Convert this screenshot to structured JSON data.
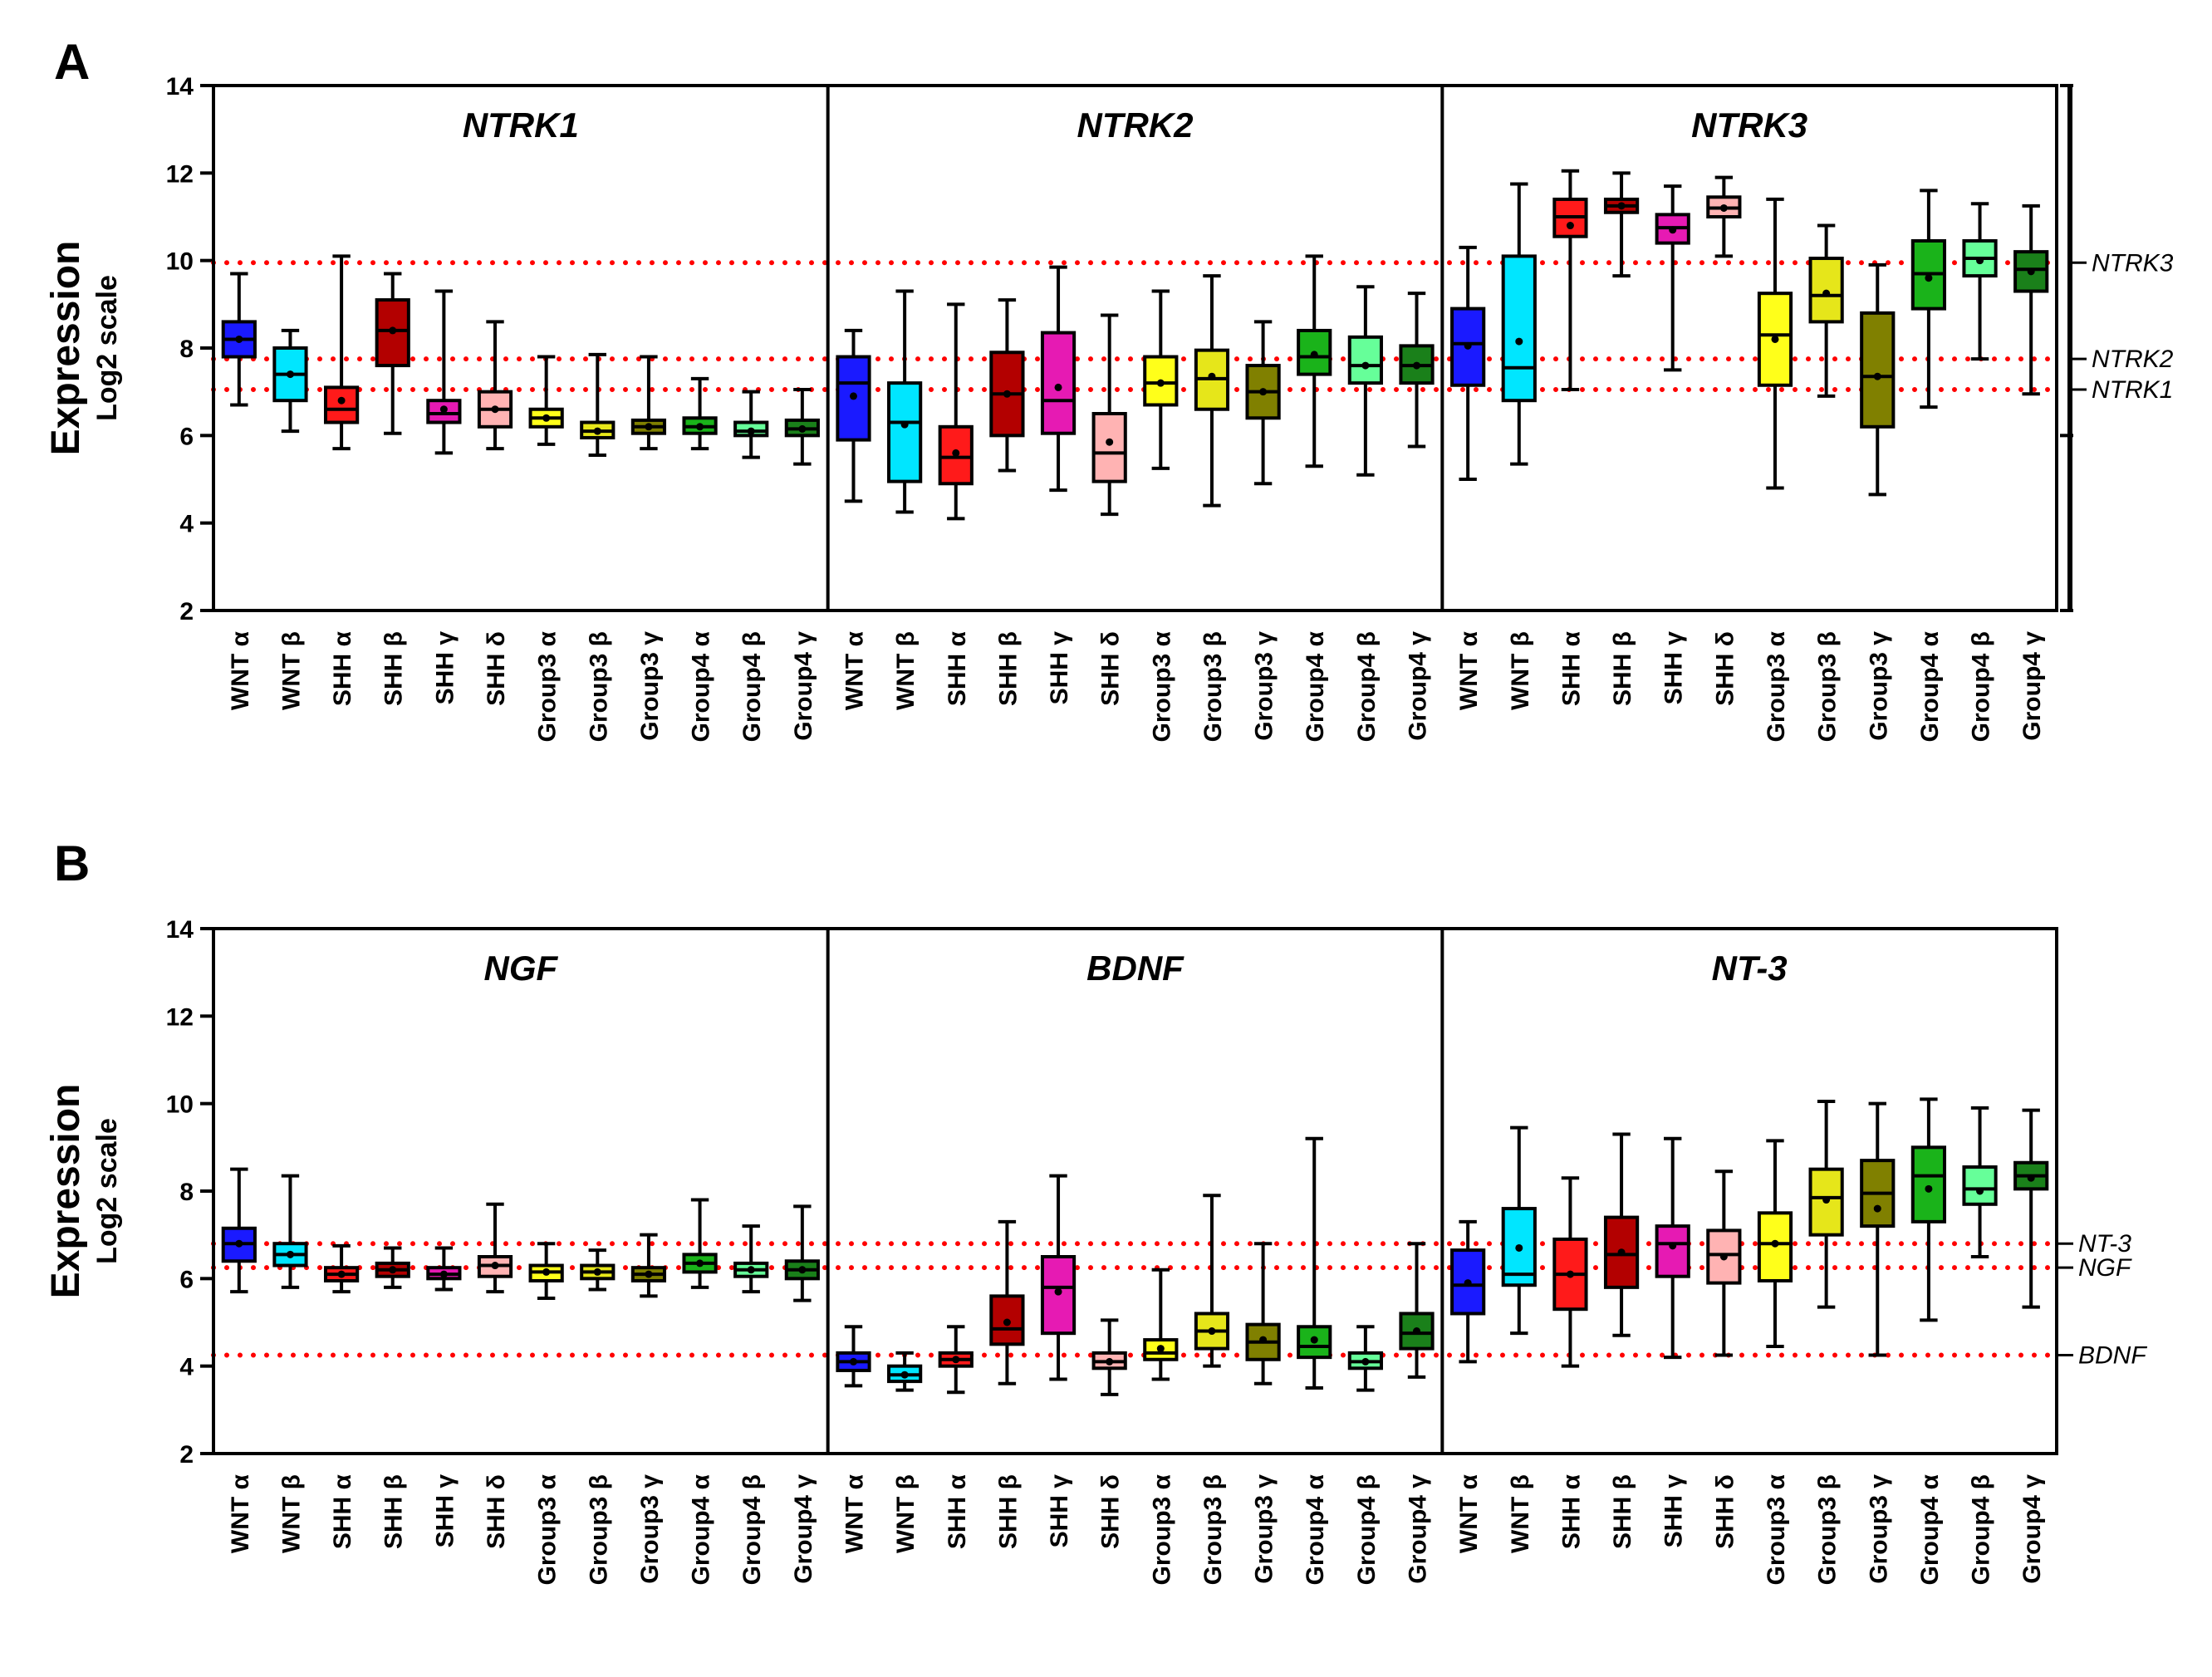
{
  "chart_data": [
    {
      "panel": "A",
      "type": "box",
      "ylabel": "Expression",
      "ylabel_sub": "Log2 scale",
      "ylim": [
        2,
        14
      ],
      "yticks": [
        2,
        4,
        6,
        8,
        10,
        12,
        14
      ],
      "categories": [
        "WNT α",
        "WNT β",
        "SHH α",
        "SHH β",
        "SHH γ",
        "SHH δ",
        "Group3 α",
        "Group3 β",
        "Group3 γ",
        "Group4 α",
        "Group4 β",
        "Group4 γ"
      ],
      "colors": [
        "#1a1aff",
        "#00e6ff",
        "#ff1a1a",
        "#b30000",
        "#e61ab3",
        "#ffb3b3",
        "#ffff1a",
        "#e6e61a",
        "#808000",
        "#1ab31a",
        "#66ff99",
        "#1a801a"
      ],
      "reference_lines": [
        {
          "label": "NTRK3",
          "value": 9.95
        },
        {
          "label": "NTRK2",
          "value": 7.75
        },
        {
          "label": "NTRK1",
          "value": 7.05
        }
      ],
      "sections": [
        {
          "title": "NTRK1",
          "boxes": [
            {
              "min": 6.7,
              "q1": 7.8,
              "median": 8.2,
              "q3": 8.6,
              "max": 9.7,
              "mean": 8.2
            },
            {
              "min": 6.1,
              "q1": 6.8,
              "median": 7.4,
              "q3": 8.0,
              "max": 8.4,
              "mean": 7.4
            },
            {
              "min": 5.7,
              "q1": 6.3,
              "median": 6.6,
              "q3": 7.1,
              "max": 10.1,
              "mean": 6.8
            },
            {
              "min": 6.05,
              "q1": 7.6,
              "median": 8.4,
              "q3": 9.1,
              "max": 9.7,
              "mean": 8.4
            },
            {
              "min": 5.6,
              "q1": 6.3,
              "median": 6.5,
              "q3": 6.8,
              "max": 9.3,
              "mean": 6.6
            },
            {
              "min": 5.7,
              "q1": 6.2,
              "median": 6.6,
              "q3": 7.0,
              "max": 8.6,
              "mean": 6.6
            },
            {
              "min": 5.8,
              "q1": 6.2,
              "median": 6.4,
              "q3": 6.6,
              "max": 7.8,
              "mean": 6.4
            },
            {
              "min": 5.55,
              "q1": 5.95,
              "median": 6.1,
              "q3": 6.3,
              "max": 7.85,
              "mean": 6.1
            },
            {
              "min": 5.7,
              "q1": 6.05,
              "median": 6.2,
              "q3": 6.35,
              "max": 7.8,
              "mean": 6.2
            },
            {
              "min": 5.7,
              "q1": 6.05,
              "median": 6.2,
              "q3": 6.4,
              "max": 7.3,
              "mean": 6.2
            },
            {
              "min": 5.5,
              "q1": 6.0,
              "median": 6.1,
              "q3": 6.3,
              "max": 7.0,
              "mean": 6.1
            },
            {
              "min": 5.35,
              "q1": 6.0,
              "median": 6.15,
              "q3": 6.35,
              "max": 7.05,
              "mean": 6.15
            }
          ]
        },
        {
          "title": "NTRK2",
          "boxes": [
            {
              "min": 4.5,
              "q1": 5.9,
              "median": 7.2,
              "q3": 7.8,
              "max": 8.4,
              "mean": 6.9
            },
            {
              "min": 4.25,
              "q1": 4.95,
              "median": 6.3,
              "q3": 7.2,
              "max": 9.3,
              "mean": 6.25
            },
            {
              "min": 4.1,
              "q1": 4.9,
              "median": 5.5,
              "q3": 6.2,
              "max": 9.0,
              "mean": 5.6
            },
            {
              "min": 5.2,
              "q1": 6.0,
              "median": 6.95,
              "q3": 7.9,
              "max": 9.1,
              "mean": 6.95
            },
            {
              "min": 4.75,
              "q1": 6.05,
              "median": 6.8,
              "q3": 8.35,
              "max": 9.85,
              "mean": 7.1
            },
            {
              "min": 4.2,
              "q1": 4.95,
              "median": 5.6,
              "q3": 6.5,
              "max": 8.75,
              "mean": 5.85
            },
            {
              "min": 5.25,
              "q1": 6.7,
              "median": 7.2,
              "q3": 7.8,
              "max": 9.3,
              "mean": 7.2
            },
            {
              "min": 4.4,
              "q1": 6.6,
              "median": 7.3,
              "q3": 7.95,
              "max": 9.65,
              "mean": 7.35
            },
            {
              "min": 4.9,
              "q1": 6.4,
              "median": 7.0,
              "q3": 7.6,
              "max": 8.6,
              "mean": 7.0
            },
            {
              "min": 5.3,
              "q1": 7.4,
              "median": 7.8,
              "q3": 8.4,
              "max": 10.1,
              "mean": 7.85
            },
            {
              "min": 5.1,
              "q1": 7.2,
              "median": 7.6,
              "q3": 8.25,
              "max": 9.4,
              "mean": 7.6
            },
            {
              "min": 5.75,
              "q1": 7.2,
              "median": 7.6,
              "q3": 8.05,
              "max": 9.25,
              "mean": 7.6
            }
          ]
        },
        {
          "title": "NTRK3",
          "boxes": [
            {
              "min": 5.0,
              "q1": 7.15,
              "median": 8.1,
              "q3": 8.9,
              "max": 10.3,
              "mean": 8.05
            },
            {
              "min": 5.35,
              "q1": 6.8,
              "median": 7.55,
              "q3": 10.1,
              "max": 11.75,
              "mean": 8.15
            },
            {
              "min": 7.05,
              "q1": 10.55,
              "median": 11.0,
              "q3": 11.4,
              "max": 12.05,
              "mean": 10.8
            },
            {
              "min": 9.65,
              "q1": 11.1,
              "median": 11.25,
              "q3": 11.4,
              "max": 12.0,
              "mean": 11.25
            },
            {
              "min": 7.5,
              "q1": 10.4,
              "median": 10.75,
              "q3": 11.05,
              "max": 11.7,
              "mean": 10.7
            },
            {
              "min": 10.1,
              "q1": 11.0,
              "median": 11.2,
              "q3": 11.45,
              "max": 11.9,
              "mean": 11.2
            },
            {
              "min": 4.8,
              "q1": 7.15,
              "median": 8.3,
              "q3": 9.25,
              "max": 11.4,
              "mean": 8.2
            },
            {
              "min": 6.9,
              "q1": 8.6,
              "median": 9.2,
              "q3": 10.05,
              "max": 10.8,
              "mean": 9.25
            },
            {
              "min": 4.65,
              "q1": 6.2,
              "median": 7.35,
              "q3": 8.8,
              "max": 9.9,
              "mean": 7.35
            },
            {
              "min": 6.65,
              "q1": 8.9,
              "median": 9.7,
              "q3": 10.45,
              "max": 11.6,
              "mean": 9.6
            },
            {
              "min": 7.75,
              "q1": 9.65,
              "median": 10.05,
              "q3": 10.45,
              "max": 11.3,
              "mean": 10.0
            },
            {
              "min": 6.95,
              "q1": 9.3,
              "median": 9.8,
              "q3": 10.2,
              "max": 11.25,
              "mean": 9.75
            }
          ]
        }
      ]
    },
    {
      "panel": "B",
      "type": "box",
      "ylabel": "Expression",
      "ylabel_sub": "Log2 scale",
      "ylim": [
        2,
        14
      ],
      "yticks": [
        2,
        4,
        6,
        8,
        10,
        12,
        14
      ],
      "categories": [
        "WNT α",
        "WNT β",
        "SHH α",
        "SHH β",
        "SHH γ",
        "SHH δ",
        "Group3 α",
        "Group3 β",
        "Group3 γ",
        "Group4 α",
        "Group4 β",
        "Group4 γ"
      ],
      "colors": [
        "#1a1aff",
        "#00e6ff",
        "#ff1a1a",
        "#b30000",
        "#e61ab3",
        "#ffb3b3",
        "#ffff1a",
        "#e6e61a",
        "#808000",
        "#1ab31a",
        "#66ff99",
        "#1a801a"
      ],
      "reference_lines": [
        {
          "label": "NT-3",
          "value": 6.8
        },
        {
          "label": "NGF",
          "value": 6.25
        },
        {
          "label": "BDNF",
          "value": 4.25
        }
      ],
      "sections": [
        {
          "title": "NGF",
          "boxes": [
            {
              "min": 5.7,
              "q1": 6.4,
              "median": 6.8,
              "q3": 7.15,
              "max": 8.5,
              "mean": 6.8
            },
            {
              "min": 5.8,
              "q1": 6.3,
              "median": 6.55,
              "q3": 6.8,
              "max": 8.35,
              "mean": 6.55
            },
            {
              "min": 5.7,
              "q1": 5.95,
              "median": 6.1,
              "q3": 6.25,
              "max": 6.75,
              "mean": 6.1
            },
            {
              "min": 5.8,
              "q1": 6.05,
              "median": 6.2,
              "q3": 6.35,
              "max": 6.7,
              "mean": 6.2
            },
            {
              "min": 5.75,
              "q1": 6.0,
              "median": 6.1,
              "q3": 6.25,
              "max": 6.7,
              "mean": 6.1
            },
            {
              "min": 5.7,
              "q1": 6.05,
              "median": 6.3,
              "q3": 6.5,
              "max": 7.7,
              "mean": 6.3
            },
            {
              "min": 5.55,
              "q1": 5.95,
              "median": 6.15,
              "q3": 6.3,
              "max": 6.8,
              "mean": 6.15
            },
            {
              "min": 5.75,
              "q1": 6.0,
              "median": 6.15,
              "q3": 6.3,
              "max": 6.65,
              "mean": 6.15
            },
            {
              "min": 5.6,
              "q1": 5.95,
              "median": 6.1,
              "q3": 6.25,
              "max": 7.0,
              "mean": 6.1
            },
            {
              "min": 5.8,
              "q1": 6.15,
              "median": 6.35,
              "q3": 6.55,
              "max": 7.8,
              "mean": 6.35
            },
            {
              "min": 5.7,
              "q1": 6.05,
              "median": 6.2,
              "q3": 6.35,
              "max": 7.2,
              "mean": 6.2
            },
            {
              "min": 5.5,
              "q1": 6.0,
              "median": 6.2,
              "q3": 6.4,
              "max": 7.65,
              "mean": 6.2
            }
          ]
        },
        {
          "title": "BDNF",
          "boxes": [
            {
              "min": 3.55,
              "q1": 3.9,
              "median": 4.1,
              "q3": 4.3,
              "max": 4.9,
              "mean": 4.1
            },
            {
              "min": 3.45,
              "q1": 3.65,
              "median": 3.8,
              "q3": 4.0,
              "max": 4.3,
              "mean": 3.8
            },
            {
              "min": 3.4,
              "q1": 4.0,
              "median": 4.15,
              "q3": 4.3,
              "max": 4.9,
              "mean": 4.15
            },
            {
              "min": 3.6,
              "q1": 4.5,
              "median": 4.85,
              "q3": 5.6,
              "max": 7.3,
              "mean": 5.0
            },
            {
              "min": 3.7,
              "q1": 4.75,
              "median": 5.8,
              "q3": 6.5,
              "max": 8.35,
              "mean": 5.7
            },
            {
              "min": 3.35,
              "q1": 3.95,
              "median": 4.1,
              "q3": 4.3,
              "max": 5.05,
              "mean": 4.1
            },
            {
              "min": 3.7,
              "q1": 4.15,
              "median": 4.3,
              "q3": 4.6,
              "max": 6.2,
              "mean": 4.4
            },
            {
              "min": 4.0,
              "q1": 4.4,
              "median": 4.8,
              "q3": 5.2,
              "max": 7.9,
              "mean": 4.8
            },
            {
              "min": 3.6,
              "q1": 4.15,
              "median": 4.55,
              "q3": 4.95,
              "max": 6.8,
              "mean": 4.6
            },
            {
              "min": 3.5,
              "q1": 4.2,
              "median": 4.45,
              "q3": 4.9,
              "max": 9.2,
              "mean": 4.6
            },
            {
              "min": 3.45,
              "q1": 3.95,
              "median": 4.1,
              "q3": 4.3,
              "max": 4.9,
              "mean": 4.1
            },
            {
              "min": 3.75,
              "q1": 4.4,
              "median": 4.75,
              "q3": 5.2,
              "max": 6.8,
              "mean": 4.8
            }
          ]
        },
        {
          "title": "NT-3",
          "boxes": [
            {
              "min": 4.1,
              "q1": 5.2,
              "median": 5.85,
              "q3": 6.65,
              "max": 7.3,
              "mean": 5.9
            },
            {
              "min": 4.75,
              "q1": 5.85,
              "median": 6.1,
              "q3": 7.6,
              "max": 9.45,
              "mean": 6.7
            },
            {
              "min": 4.0,
              "q1": 5.3,
              "median": 6.1,
              "q3": 6.9,
              "max": 8.3,
              "mean": 6.1
            },
            {
              "min": 4.7,
              "q1": 5.8,
              "median": 6.55,
              "q3": 7.4,
              "max": 9.3,
              "mean": 6.6
            },
            {
              "min": 4.2,
              "q1": 6.05,
              "median": 6.8,
              "q3": 7.2,
              "max": 9.2,
              "mean": 6.75
            },
            {
              "min": 4.25,
              "q1": 5.9,
              "median": 6.55,
              "q3": 7.1,
              "max": 8.45,
              "mean": 6.5
            },
            {
              "min": 4.45,
              "q1": 5.95,
              "median": 6.8,
              "q3": 7.5,
              "max": 9.15,
              "mean": 6.8
            },
            {
              "min": 5.35,
              "q1": 7.0,
              "median": 7.85,
              "q3": 8.5,
              "max": 10.05,
              "mean": 7.8
            },
            {
              "min": 4.25,
              "q1": 7.2,
              "median": 7.95,
              "q3": 8.7,
              "max": 10.0,
              "mean": 7.6
            },
            {
              "min": 5.05,
              "q1": 7.3,
              "median": 8.35,
              "q3": 9.0,
              "max": 10.1,
              "mean": 8.05
            },
            {
              "min": 6.5,
              "q1": 7.7,
              "median": 8.05,
              "q3": 8.55,
              "max": 9.9,
              "mean": 8.0
            },
            {
              "min": 5.35,
              "q1": 8.05,
              "median": 8.35,
              "q3": 8.65,
              "max": 9.85,
              "mean": 8.3
            }
          ]
        }
      ]
    }
  ]
}
